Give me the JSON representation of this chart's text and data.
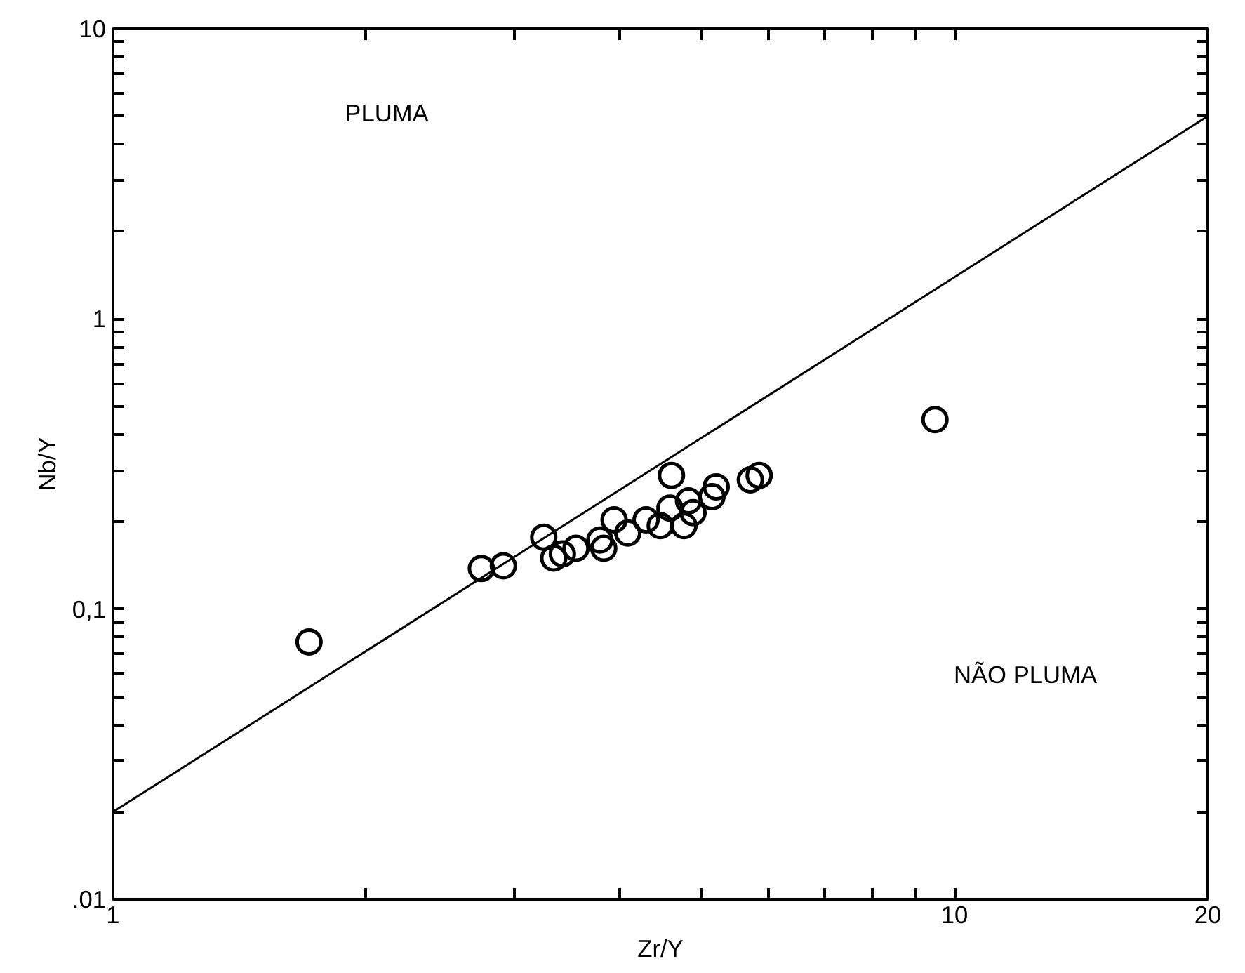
{
  "chart_data": {
    "type": "scatter",
    "xlabel": "Zr/Y",
    "ylabel": "Nb/Y",
    "log": "xy",
    "grid": false,
    "xlim": [
      1,
      20
    ],
    "ylim": [
      0.01,
      10
    ],
    "xticks": [
      1,
      {
        "value": 2,
        "label": null
      },
      {
        "value": 3,
        "label": null
      },
      {
        "value": 4,
        "label": null
      },
      {
        "value": 5,
        "label": null
      },
      {
        "value": 6,
        "label": null
      },
      {
        "value": 7,
        "label": null
      },
      {
        "value": 8,
        "label": null
      },
      {
        "value": 9,
        "label": null
      },
      10,
      20
    ],
    "yticks": [
      {
        "value": 0.01,
        "label": ".01"
      },
      {
        "value": 0.02,
        "label": null
      },
      {
        "value": 0.03,
        "label": null
      },
      {
        "value": 0.04,
        "label": null
      },
      {
        "value": 0.05,
        "label": null
      },
      {
        "value": 0.06,
        "label": null
      },
      {
        "value": 0.07,
        "label": null
      },
      {
        "value": 0.08,
        "label": null
      },
      {
        "value": 0.09,
        "label": null
      },
      {
        "value": 0.1,
        "label": "0,1"
      },
      {
        "value": 0.2,
        "label": null
      },
      {
        "value": 0.3,
        "label": null
      },
      {
        "value": 0.4,
        "label": null
      },
      {
        "value": 0.5,
        "label": null
      },
      {
        "value": 0.6,
        "label": null
      },
      {
        "value": 0.7,
        "label": null
      },
      {
        "value": 0.8,
        "label": null
      },
      {
        "value": 0.9,
        "label": null
      },
      1,
      {
        "value": 2,
        "label": null
      },
      {
        "value": 3,
        "label": null
      },
      {
        "value": 4,
        "label": null
      },
      {
        "value": 5,
        "label": null
      },
      {
        "value": 6,
        "label": null
      },
      {
        "value": 7,
        "label": null
      },
      {
        "value": 8,
        "label": null
      },
      {
        "value": 9,
        "label": null
      },
      10
    ],
    "series": [
      {
        "color": "#000000",
        "marker": "circle",
        "x": [
          1.71,
          2.74,
          2.91,
          3.25,
          3.34,
          3.42,
          3.55,
          3.79,
          3.83,
          3.94,
          4.09,
          4.3,
          4.47,
          4.59,
          4.61,
          4.77,
          4.83,
          4.89,
          5.15,
          5.21,
          5.72,
          5.86,
          9.48
        ],
        "values": [
          0.077,
          0.138,
          0.141,
          0.177,
          0.15,
          0.155,
          0.162,
          0.173,
          0.162,
          0.203,
          0.183,
          0.203,
          0.194,
          0.223,
          0.289,
          0.194,
          0.236,
          0.215,
          0.244,
          0.264,
          0.279,
          0.289,
          0.45
        ]
      },
      {
        "type": "line",
        "color": "#000000",
        "x": [
          1,
          20
        ],
        "values": [
          0.02,
          5
        ]
      }
    ],
    "annotations": [
      "PLUMA",
      "NÃO PLUMA"
    ]
  }
}
